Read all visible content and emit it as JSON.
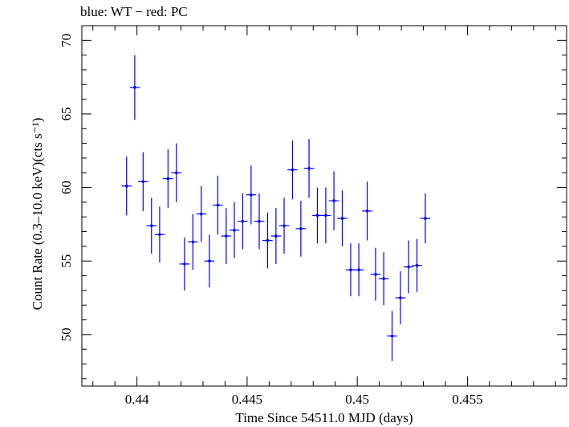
{
  "chart_data": {
    "type": "scatter",
    "title": "blue: WT − red: PC",
    "xlabel": "Time Since 54511.0 MJD (days)",
    "ylabel": "Count Rate (0.3–10.0 keV)(cts s⁻¹)",
    "xlim": [
      0.4375,
      0.4595
    ],
    "ylim": [
      46.5,
      71
    ],
    "x_ticks": [
      0.44,
      0.445,
      0.45,
      0.455
    ],
    "x_tick_labels": [
      "0.44",
      "0.445",
      "0.45",
      "0.455"
    ],
    "y_ticks": [
      50,
      55,
      60,
      65,
      70
    ],
    "y_tick_labels": [
      "50",
      "55",
      "60",
      "65",
      "70"
    ],
    "grid": false,
    "series_color": "#0000ff",
    "points": [
      {
        "x": 0.43953,
        "y": 60.1,
        "xerr": 0.00023,
        "yerr": 2.0
      },
      {
        "x": 0.4399,
        "y": 66.8,
        "xerr": 0.00023,
        "yerr": 2.2
      },
      {
        "x": 0.44028,
        "y": 60.4,
        "xerr": 0.00023,
        "yerr": 2.0
      },
      {
        "x": 0.44066,
        "y": 57.4,
        "xerr": 0.00023,
        "yerr": 1.9
      },
      {
        "x": 0.44103,
        "y": 56.8,
        "xerr": 0.00023,
        "yerr": 1.9
      },
      {
        "x": 0.44141,
        "y": 60.6,
        "xerr": 0.00023,
        "yerr": 2.0
      },
      {
        "x": 0.44179,
        "y": 61.0,
        "xerr": 0.00023,
        "yerr": 2.0
      },
      {
        "x": 0.44216,
        "y": 54.8,
        "xerr": 0.00023,
        "yerr": 1.8
      },
      {
        "x": 0.44254,
        "y": 56.3,
        "xerr": 0.00023,
        "yerr": 1.9
      },
      {
        "x": 0.44292,
        "y": 58.2,
        "xerr": 0.00023,
        "yerr": 1.9
      },
      {
        "x": 0.44329,
        "y": 55.0,
        "xerr": 0.00023,
        "yerr": 1.8
      },
      {
        "x": 0.44367,
        "y": 58.8,
        "xerr": 0.00023,
        "yerr": 2.0
      },
      {
        "x": 0.44405,
        "y": 56.7,
        "xerr": 0.00023,
        "yerr": 1.9
      },
      {
        "x": 0.44442,
        "y": 57.1,
        "xerr": 0.00023,
        "yerr": 1.9
      },
      {
        "x": 0.4448,
        "y": 57.7,
        "xerr": 0.00023,
        "yerr": 1.9
      },
      {
        "x": 0.44518,
        "y": 59.5,
        "xerr": 0.00023,
        "yerr": 2.0
      },
      {
        "x": 0.44555,
        "y": 57.7,
        "xerr": 0.00023,
        "yerr": 1.9
      },
      {
        "x": 0.44593,
        "y": 56.4,
        "xerr": 0.00023,
        "yerr": 1.9
      },
      {
        "x": 0.44631,
        "y": 56.7,
        "xerr": 0.00023,
        "yerr": 1.9
      },
      {
        "x": 0.44668,
        "y": 57.4,
        "xerr": 0.00023,
        "yerr": 1.9
      },
      {
        "x": 0.44706,
        "y": 61.2,
        "xerr": 0.00023,
        "yerr": 2.0
      },
      {
        "x": 0.44744,
        "y": 57.2,
        "xerr": 0.00023,
        "yerr": 1.9
      },
      {
        "x": 0.44781,
        "y": 61.3,
        "xerr": 0.00023,
        "yerr": 2.0
      },
      {
        "x": 0.44819,
        "y": 58.1,
        "xerr": 0.00023,
        "yerr": 1.9
      },
      {
        "x": 0.44857,
        "y": 58.1,
        "xerr": 0.00023,
        "yerr": 1.9
      },
      {
        "x": 0.44894,
        "y": 59.1,
        "xerr": 0.00023,
        "yerr": 2.0
      },
      {
        "x": 0.44932,
        "y": 57.9,
        "xerr": 0.00023,
        "yerr": 1.9
      },
      {
        "x": 0.4497,
        "y": 54.4,
        "xerr": 0.00023,
        "yerr": 1.8
      },
      {
        "x": 0.45007,
        "y": 54.4,
        "xerr": 0.00023,
        "yerr": 1.8
      },
      {
        "x": 0.45045,
        "y": 58.4,
        "xerr": 0.00023,
        "yerr": 2.0
      },
      {
        "x": 0.45083,
        "y": 54.1,
        "xerr": 0.00023,
        "yerr": 1.8
      },
      {
        "x": 0.4512,
        "y": 53.8,
        "xerr": 0.00023,
        "yerr": 1.8
      },
      {
        "x": 0.45158,
        "y": 49.9,
        "xerr": 0.00023,
        "yerr": 1.7
      },
      {
        "x": 0.45196,
        "y": 52.5,
        "xerr": 0.00023,
        "yerr": 1.8
      },
      {
        "x": 0.45233,
        "y": 54.6,
        "xerr": 0.00023,
        "yerr": 1.8
      },
      {
        "x": 0.45271,
        "y": 54.7,
        "xerr": 0.00023,
        "yerr": 1.8
      },
      {
        "x": 0.45309,
        "y": 57.9,
        "xerr": 0.00023,
        "yerr": 1.7
      }
    ]
  }
}
